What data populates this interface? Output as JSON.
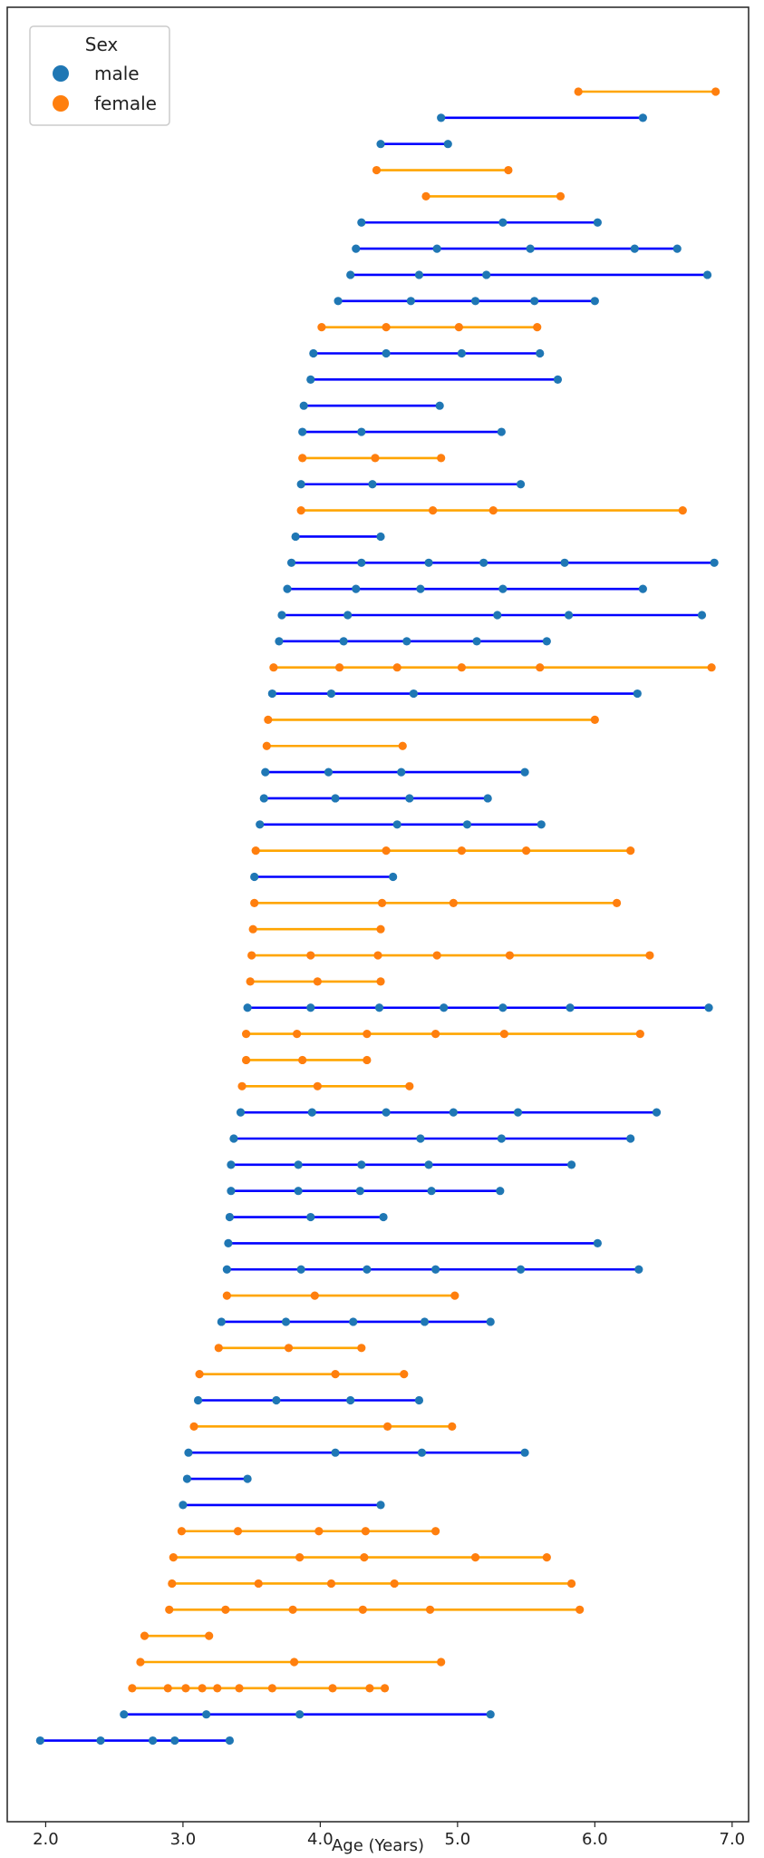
{
  "chart_data": {
    "type": "scatter",
    "subtype": "timeline",
    "xlabel": "Age (Years)",
    "ylabel": "",
    "xlim": [
      1.72,
      7.12
    ],
    "xticks": [
      2.0,
      3.0,
      4.0,
      5.0,
      6.0,
      7.0
    ],
    "xtick_labels": [
      "2.0",
      "3.0",
      "4.0",
      "5.0",
      "6.0",
      "7.0"
    ],
    "grid": false,
    "legend": {
      "title": "Sex",
      "placement": "top-left",
      "entries": [
        {
          "label": "male",
          "key": "male"
        },
        {
          "label": "female",
          "key": "female"
        }
      ]
    },
    "colors": {
      "male_marker": "#1f77b4",
      "male_line": "#0000ff",
      "female_marker": "#ff7f0e",
      "female_line": "#ffa500"
    },
    "subjects": [
      {
        "sex": "female",
        "ages": [
          5.88,
          6.88
        ]
      },
      {
        "sex": "male",
        "ages": [
          4.88,
          6.35
        ]
      },
      {
        "sex": "male",
        "ages": [
          4.44,
          4.93
        ]
      },
      {
        "sex": "female",
        "ages": [
          4.41,
          5.37
        ]
      },
      {
        "sex": "female",
        "ages": [
          4.77,
          5.75
        ]
      },
      {
        "sex": "male",
        "ages": [
          4.3,
          5.33,
          6.02
        ]
      },
      {
        "sex": "male",
        "ages": [
          4.26,
          4.85,
          5.53,
          6.29,
          6.6
        ]
      },
      {
        "sex": "male",
        "ages": [
          4.22,
          4.72,
          5.21,
          6.82
        ]
      },
      {
        "sex": "male",
        "ages": [
          4.13,
          4.66,
          5.13,
          5.56,
          6.0
        ]
      },
      {
        "sex": "female",
        "ages": [
          4.01,
          4.48,
          5.01,
          5.58
        ]
      },
      {
        "sex": "male",
        "ages": [
          3.95,
          4.48,
          5.03,
          5.6
        ]
      },
      {
        "sex": "male",
        "ages": [
          3.93,
          5.73
        ]
      },
      {
        "sex": "male",
        "ages": [
          3.88,
          4.87
        ]
      },
      {
        "sex": "male",
        "ages": [
          3.87,
          4.3,
          5.32
        ]
      },
      {
        "sex": "female",
        "ages": [
          3.87,
          4.4,
          4.88
        ]
      },
      {
        "sex": "male",
        "ages": [
          3.86,
          4.38,
          5.46
        ]
      },
      {
        "sex": "female",
        "ages": [
          3.86,
          4.82,
          5.26,
          6.64
        ]
      },
      {
        "sex": "male",
        "ages": [
          3.82,
          4.44
        ]
      },
      {
        "sex": "male",
        "ages": [
          3.79,
          4.3,
          4.79,
          5.19,
          5.78,
          6.87
        ]
      },
      {
        "sex": "male",
        "ages": [
          3.76,
          4.26,
          4.73,
          5.33,
          6.35
        ]
      },
      {
        "sex": "male",
        "ages": [
          3.72,
          4.2,
          5.29,
          5.81,
          6.78
        ]
      },
      {
        "sex": "male",
        "ages": [
          3.7,
          4.17,
          4.63,
          5.14,
          5.65
        ]
      },
      {
        "sex": "female",
        "ages": [
          3.66,
          4.14,
          4.56,
          5.03,
          5.6,
          6.85
        ]
      },
      {
        "sex": "male",
        "ages": [
          3.65,
          4.08,
          4.68,
          6.31
        ]
      },
      {
        "sex": "female",
        "ages": [
          3.62,
          6.0
        ]
      },
      {
        "sex": "female",
        "ages": [
          3.61,
          4.6
        ]
      },
      {
        "sex": "male",
        "ages": [
          3.6,
          4.06,
          4.59,
          5.49
        ]
      },
      {
        "sex": "male",
        "ages": [
          3.59,
          4.11,
          4.65,
          5.22
        ]
      },
      {
        "sex": "male",
        "ages": [
          3.56,
          4.56,
          5.07,
          5.61
        ]
      },
      {
        "sex": "female",
        "ages": [
          3.53,
          4.48,
          5.03,
          5.5,
          6.26
        ]
      },
      {
        "sex": "male",
        "ages": [
          3.52,
          4.53
        ]
      },
      {
        "sex": "female",
        "ages": [
          3.52,
          4.45,
          4.97,
          6.16
        ]
      },
      {
        "sex": "female",
        "ages": [
          3.51,
          4.44
        ]
      },
      {
        "sex": "female",
        "ages": [
          3.5,
          3.93,
          4.42,
          4.85,
          5.38,
          6.4
        ]
      },
      {
        "sex": "female",
        "ages": [
          3.49,
          3.98,
          4.44
        ]
      },
      {
        "sex": "male",
        "ages": [
          3.47,
          3.93,
          4.43,
          4.9,
          5.33,
          5.82,
          6.83
        ]
      },
      {
        "sex": "female",
        "ages": [
          3.46,
          3.83,
          4.34,
          4.84,
          5.34,
          6.33
        ]
      },
      {
        "sex": "female",
        "ages": [
          3.46,
          3.87,
          4.34
        ]
      },
      {
        "sex": "female",
        "ages": [
          3.43,
          3.98,
          4.65
        ]
      },
      {
        "sex": "male",
        "ages": [
          3.42,
          3.94,
          4.48,
          4.97,
          5.44,
          6.45
        ]
      },
      {
        "sex": "male",
        "ages": [
          3.37,
          4.73,
          5.32,
          6.26
        ]
      },
      {
        "sex": "male",
        "ages": [
          3.35,
          3.84,
          4.3,
          4.79,
          5.83
        ]
      },
      {
        "sex": "male",
        "ages": [
          3.35,
          3.84,
          4.29,
          4.81,
          5.31
        ]
      },
      {
        "sex": "male",
        "ages": [
          3.34,
          3.93,
          4.46
        ]
      },
      {
        "sex": "male",
        "ages": [
          3.33,
          6.02
        ]
      },
      {
        "sex": "male",
        "ages": [
          3.32,
          3.86,
          4.34,
          4.84,
          5.46,
          6.32
        ]
      },
      {
        "sex": "female",
        "ages": [
          3.32,
          3.96,
          4.98
        ]
      },
      {
        "sex": "male",
        "ages": [
          3.28,
          3.75,
          4.24,
          4.76,
          5.24
        ]
      },
      {
        "sex": "female",
        "ages": [
          3.26,
          3.77,
          4.3
        ]
      },
      {
        "sex": "female",
        "ages": [
          3.12,
          4.11,
          4.61
        ]
      },
      {
        "sex": "male",
        "ages": [
          3.11,
          3.68,
          4.22,
          4.72
        ]
      },
      {
        "sex": "female",
        "ages": [
          3.08,
          4.49,
          4.96
        ]
      },
      {
        "sex": "male",
        "ages": [
          3.04,
          4.11,
          4.74,
          5.49
        ]
      },
      {
        "sex": "male",
        "ages": [
          3.03,
          3.47
        ]
      },
      {
        "sex": "male",
        "ages": [
          3.0,
          4.44
        ]
      },
      {
        "sex": "female",
        "ages": [
          2.99,
          3.4,
          3.99,
          4.33,
          4.84
        ]
      },
      {
        "sex": "female",
        "ages": [
          2.93,
          3.85,
          4.32,
          5.13,
          5.65
        ]
      },
      {
        "sex": "female",
        "ages": [
          2.92,
          3.55,
          4.08,
          4.54,
          5.83
        ]
      },
      {
        "sex": "female",
        "ages": [
          2.9,
          3.31,
          3.8,
          4.31,
          4.8,
          5.89
        ]
      },
      {
        "sex": "female",
        "ages": [
          2.72,
          3.19
        ]
      },
      {
        "sex": "female",
        "ages": [
          2.69,
          3.81,
          4.88
        ]
      },
      {
        "sex": "female",
        "ages": [
          2.63,
          2.89,
          3.02,
          3.14,
          3.25,
          3.41,
          3.65,
          4.09,
          4.36,
          4.47
        ]
      },
      {
        "sex": "male",
        "ages": [
          2.57,
          3.17,
          3.85,
          5.24
        ]
      },
      {
        "sex": "male",
        "ages": [
          1.96,
          2.4,
          2.78,
          2.94,
          3.34
        ]
      }
    ]
  }
}
